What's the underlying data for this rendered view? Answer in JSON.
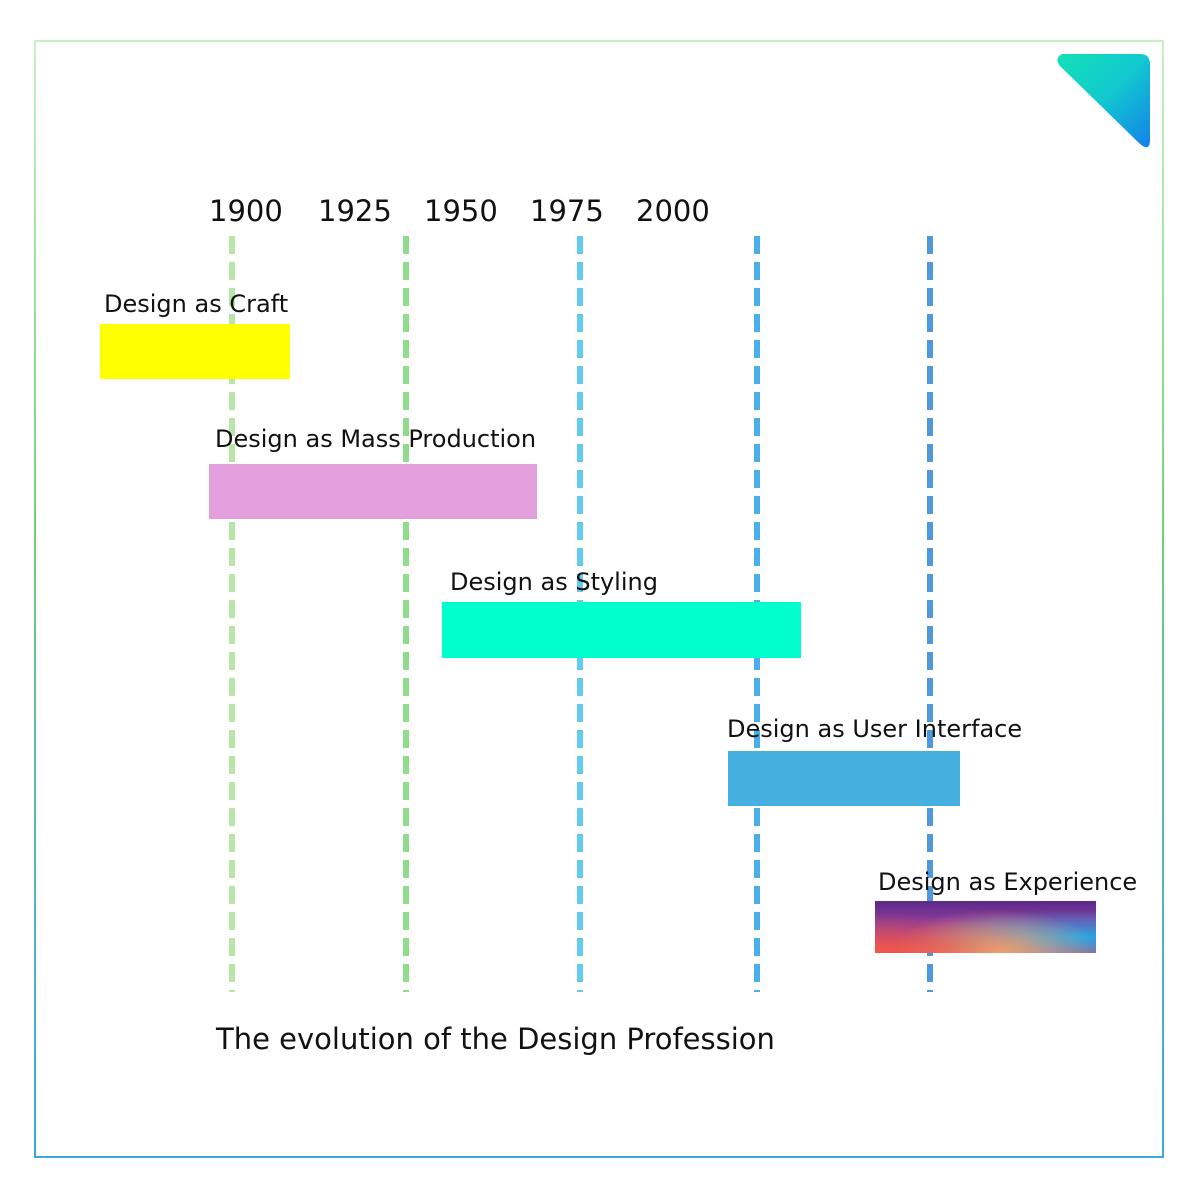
{
  "years": [
    "1900",
    "1925",
    "1950",
    "1975",
    "2000"
  ],
  "eras": [
    {
      "label": "Design as Craft",
      "color": "#ffff00"
    },
    {
      "label": "Design as Mass Production",
      "color": "#e29fdc"
    },
    {
      "label": "Design as Styling",
      "color": "#00ffcc"
    },
    {
      "label": "Design as User Interface",
      "color": "#45b0e0"
    },
    {
      "label": "Design as Experience",
      "color": "gradient"
    }
  ],
  "title": "The evolution of the Design Profession",
  "line_colors": [
    "#b8e6a8",
    "#8fdc8c",
    "#62cbee",
    "#4aaee8",
    "#4f98dc"
  ]
}
